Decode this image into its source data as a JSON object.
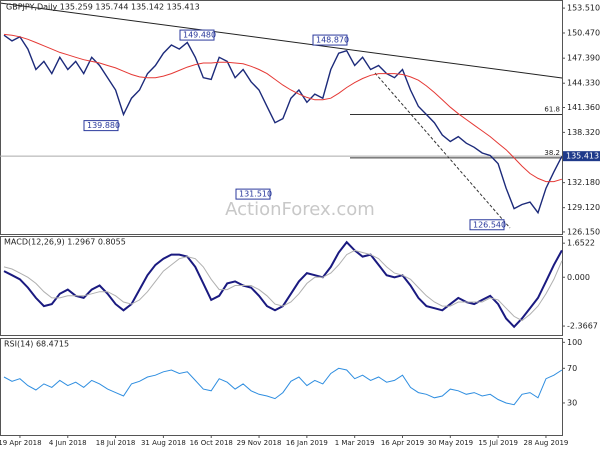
{
  "chart_data": [
    {
      "type": "line",
      "title": "GBPJPY,Daily  135.259 135.744 135.142 135.413",
      "watermark": "ActionForex.com",
      "ylim": [
        125.9,
        154.5
      ],
      "yticks": [
        {
          "value": 153.51,
          "label": "153.510"
        },
        {
          "value": 150.47,
          "label": "150.470"
        },
        {
          "value": 147.39,
          "label": "147.390"
        },
        {
          "value": 144.33,
          "label": "144.330"
        },
        {
          "value": 141.36,
          "label": "141.360"
        },
        {
          "value": 138.32,
          "label": "138.320"
        },
        {
          "value": 132.18,
          "label": "132.180"
        },
        {
          "value": 129.12,
          "label": "129.120"
        },
        {
          "value": 126.15,
          "label": "126.150"
        }
      ],
      "last_price": 135.413,
      "levels": [
        {
          "label": "61.8",
          "value": 140.5
        },
        {
          "label": "38.2",
          "value": 135.2
        }
      ],
      "annotations": [
        {
          "label": "139.880",
          "value": 139.88
        },
        {
          "label": "149.480",
          "value": 149.48
        },
        {
          "label": "131.510",
          "value": 131.51
        },
        {
          "label": "148.870",
          "value": 148.87
        },
        {
          "label": "126.540",
          "value": 126.54
        }
      ],
      "series": [
        {
          "color": "#1c2a7a",
          "values": [
            150.2,
            149.5,
            150.0,
            148.5,
            146.0,
            147.0,
            145.5,
            147.5,
            146.0,
            147.0,
            145.5,
            147.5,
            146.5,
            145.0,
            143.5,
            140.5,
            142.5,
            143.5,
            145.5,
            146.5,
            148.0,
            149.0,
            148.5,
            149.3,
            147.5,
            145.0,
            144.8,
            147.5,
            147.0,
            145.0,
            146.0,
            144.5,
            143.5,
            141.5,
            139.5,
            140.0,
            142.5,
            143.5,
            142.0,
            143.0,
            142.5,
            146.0,
            148.0,
            148.3,
            146.5,
            147.5,
            146.0,
            146.5,
            145.5,
            145.0,
            146.0,
            143.5,
            141.5,
            140.5,
            139.5,
            138.0,
            137.2,
            137.8,
            137.0,
            136.5,
            135.8,
            135.5,
            134.5,
            131.5,
            129.0,
            129.5,
            129.8,
            128.5,
            131.5,
            133.5,
            135.4
          ]
        },
        {
          "color": "#e53935",
          "values": [
            150.3,
            150.2,
            150.0,
            149.7,
            149.3,
            148.9,
            148.5,
            148.1,
            147.8,
            147.5,
            147.2,
            147.0,
            146.8,
            146.5,
            146.2,
            145.8,
            145.4,
            145.1,
            145.0,
            145.0,
            145.2,
            145.5,
            145.9,
            146.3,
            146.6,
            146.8,
            146.8,
            146.9,
            146.9,
            146.8,
            146.7,
            146.4,
            146.0,
            145.5,
            144.8,
            144.1,
            143.5,
            143.0,
            142.6,
            142.3,
            142.3,
            142.5,
            143.1,
            143.8,
            144.4,
            144.9,
            145.3,
            145.5,
            145.5,
            145.5,
            145.4,
            145.1,
            144.7,
            144.0,
            143.2,
            142.3,
            141.4,
            140.6,
            139.9,
            139.2,
            138.5,
            137.8,
            137.0,
            136.2,
            135.2,
            134.2,
            133.3,
            132.7,
            132.3,
            132.3,
            132.6
          ]
        }
      ]
    },
    {
      "type": "line",
      "title": "MACD(12,26,9) 1.2967 0.8055",
      "ylim": [
        -2.8,
        2.0
      ],
      "yticks": [
        1.6522,
        {
          "value": 0,
          "label": "0.000"
        },
        -2.3667
      ],
      "series": [
        {
          "color": "#1a1a80",
          "values": [
            0.3,
            0.1,
            -0.1,
            -0.5,
            -1.0,
            -1.4,
            -1.3,
            -0.8,
            -0.6,
            -0.9,
            -1.0,
            -0.6,
            -0.4,
            -0.8,
            -1.3,
            -1.6,
            -1.3,
            -0.6,
            0.1,
            0.6,
            0.9,
            1.1,
            1.1,
            1.0,
            0.5,
            -0.3,
            -1.1,
            -0.9,
            -0.3,
            -0.2,
            -0.4,
            -0.5,
            -0.9,
            -1.4,
            -1.6,
            -1.4,
            -0.8,
            -0.2,
            0.2,
            0.1,
            0.0,
            0.5,
            1.2,
            1.7,
            1.3,
            1.0,
            1.1,
            0.6,
            0.1,
            0.0,
            0.1,
            -0.4,
            -1.0,
            -1.4,
            -1.5,
            -1.6,
            -1.3,
            -1.0,
            -1.2,
            -1.3,
            -1.1,
            -0.9,
            -1.3,
            -2.0,
            -2.4,
            -2.0,
            -1.5,
            -1.0,
            -0.2,
            0.6,
            1.3
          ]
        },
        {
          "color": "#b0b0b0",
          "values": [
            0.5,
            0.4,
            0.2,
            0.0,
            -0.3,
            -0.7,
            -1.0,
            -1.0,
            -0.9,
            -0.9,
            -0.9,
            -0.8,
            -0.7,
            -0.7,
            -0.9,
            -1.2,
            -1.3,
            -1.1,
            -0.7,
            -0.2,
            0.3,
            0.6,
            0.9,
            1.0,
            0.9,
            0.5,
            -0.1,
            -0.6,
            -0.6,
            -0.4,
            -0.4,
            -0.4,
            -0.6,
            -0.9,
            -1.3,
            -1.4,
            -1.2,
            -0.8,
            -0.3,
            0.0,
            0.0,
            0.2,
            0.6,
            1.1,
            1.3,
            1.2,
            1.1,
            0.9,
            0.5,
            0.2,
            0.1,
            -0.1,
            -0.5,
            -0.9,
            -1.2,
            -1.4,
            -1.4,
            -1.2,
            -1.2,
            -1.2,
            -1.2,
            -1.0,
            -1.1,
            -1.5,
            -1.9,
            -2.1,
            -1.8,
            -1.4,
            -0.8,
            -0.1,
            0.8
          ]
        }
      ]
    },
    {
      "type": "line",
      "title": "RSI(14) 68.4715",
      "ylim": [
        -7,
        105
      ],
      "yticks": [
        100,
        70,
        30
      ],
      "categories": [
        null,
        null,
        "19 Apr 2018",
        null,
        null,
        null,
        null,
        null,
        "4 Jun 2018",
        null,
        null,
        null,
        null,
        null,
        "18 Jul 2018",
        null,
        null,
        null,
        null,
        null,
        "31 Aug 2018",
        null,
        null,
        null,
        null,
        null,
        "16 Oct 2018",
        null,
        null,
        null,
        null,
        null,
        "29 Nov 2018",
        null,
        null,
        null,
        null,
        null,
        "16 Jan 2019",
        null,
        null,
        null,
        null,
        null,
        "1 Mar 2019",
        null,
        null,
        null,
        null,
        null,
        "16 Apr 2019",
        null,
        null,
        null,
        null,
        null,
        "30 May 2019",
        null,
        null,
        null,
        null,
        null,
        "15 Jul 2019",
        null,
        null,
        null,
        null,
        null,
        "28 Aug 2019",
        null,
        null
      ],
      "series": [
        {
          "color": "#2f8ee0",
          "values": [
            60,
            55,
            58,
            50,
            45,
            52,
            48,
            56,
            50,
            54,
            48,
            56,
            52,
            46,
            42,
            38,
            52,
            55,
            60,
            62,
            66,
            68,
            64,
            66,
            56,
            46,
            44,
            58,
            54,
            46,
            52,
            44,
            40,
            38,
            35,
            42,
            55,
            60,
            50,
            56,
            52,
            64,
            70,
            68,
            58,
            62,
            56,
            60,
            54,
            56,
            62,
            48,
            42,
            40,
            36,
            38,
            46,
            44,
            40,
            42,
            38,
            40,
            34,
            30,
            28,
            40,
            42,
            36,
            58,
            62,
            68
          ]
        }
      ]
    }
  ]
}
